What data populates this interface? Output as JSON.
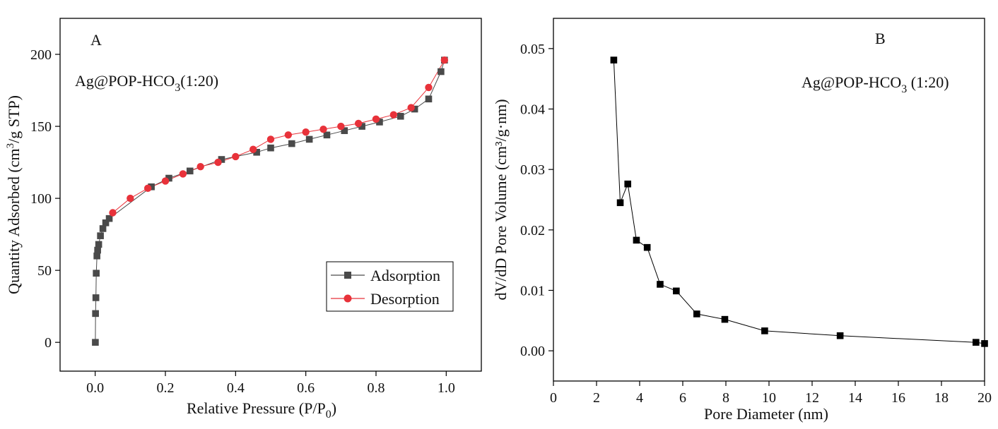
{
  "chart_data": [
    {
      "panel": "A",
      "type": "line",
      "annotation": {
        "base": "Ag@POP-HCO",
        "sub": "3",
        "tail": "(1:20)"
      },
      "xlabel": {
        "main": "Relative Pressure (P/P",
        "sub": "0",
        "tail": ")"
      },
      "ylabel": {
        "main": "Quantity Adsorbed (cm",
        "sup": "3",
        "tail": "/g STP)"
      },
      "xlim": [
        -0.1,
        1.1
      ],
      "ylim": [
        -20,
        225
      ],
      "xticks": [
        0.0,
        0.2,
        0.4,
        0.6,
        0.8,
        1.0
      ],
      "xtick_labels": [
        "0.0",
        "0.2",
        "0.4",
        "0.6",
        "0.8",
        "1.0"
      ],
      "yticks": [
        0,
        50,
        100,
        150,
        200
      ],
      "ytick_labels": [
        "0",
        "50",
        "100",
        "150",
        "200"
      ],
      "legend": {
        "placement": "bottom-right"
      },
      "series": [
        {
          "name": "Adsorption",
          "color": "#4a4a4a",
          "marker": "square",
          "x": [
            0.0005,
            0.001,
            0.002,
            0.003,
            0.005,
            0.007,
            0.01,
            0.015,
            0.022,
            0.03,
            0.04,
            0.16,
            0.21,
            0.27,
            0.36,
            0.46,
            0.5,
            0.56,
            0.61,
            0.66,
            0.71,
            0.76,
            0.81,
            0.87,
            0.91,
            0.95,
            0.985,
            0.995
          ],
          "y": [
            0,
            20,
            31,
            48,
            60,
            64,
            68,
            74,
            79,
            83,
            86,
            108,
            114,
            119,
            127,
            132,
            135,
            138,
            141,
            144,
            147,
            150,
            153,
            157,
            162,
            169,
            188,
            196
          ]
        },
        {
          "name": "Desorption",
          "color": "#e8323a",
          "marker": "circle",
          "x": [
            0.995,
            0.95,
            0.9,
            0.85,
            0.8,
            0.75,
            0.7,
            0.65,
            0.6,
            0.55,
            0.5,
            0.45,
            0.4,
            0.35,
            0.3,
            0.25,
            0.2,
            0.15,
            0.1,
            0.05
          ],
          "y": [
            196,
            177,
            163,
            158,
            155,
            152,
            150,
            148,
            146,
            144,
            141,
            134,
            129,
            125,
            122,
            117,
            112,
            107,
            100,
            90
          ]
        }
      ]
    },
    {
      "panel": "B",
      "type": "line",
      "annotation": {
        "base": "Ag@POP-HCO",
        "sub": "3",
        "tail": " (1:20)"
      },
      "xlabel": {
        "main": "Pore Diameter (nm)"
      },
      "ylabel": {
        "main": "dV/dD Pore Volume (cm³/g·nm)"
      },
      "xlim": [
        0,
        20
      ],
      "ylim": [
        -0.005,
        0.055
      ],
      "xticks": [
        0,
        2,
        4,
        6,
        8,
        10,
        12,
        14,
        16,
        18,
        20
      ],
      "xtick_labels": [
        "0",
        "2",
        "4",
        "6",
        "8",
        "10",
        "12",
        "14",
        "16",
        "18",
        "20"
      ],
      "yticks": [
        0.0,
        0.01,
        0.02,
        0.03,
        0.04,
        0.05
      ],
      "ytick_labels": [
        "0.00",
        "0.01",
        "0.02",
        "0.03",
        "0.04",
        "0.05"
      ],
      "series": [
        {
          "color": "#000000",
          "marker": "square",
          "x": [
            2.8,
            3.1,
            3.45,
            3.85,
            4.35,
            4.95,
            5.7,
            6.65,
            7.95,
            9.8,
            13.3,
            19.6,
            20.0
          ],
          "y": [
            0.0481,
            0.0245,
            0.0276,
            0.0183,
            0.0171,
            0.011,
            0.0099,
            0.0061,
            0.0052,
            0.0033,
            0.0025,
            0.0014,
            0.0012
          ]
        }
      ]
    }
  ]
}
